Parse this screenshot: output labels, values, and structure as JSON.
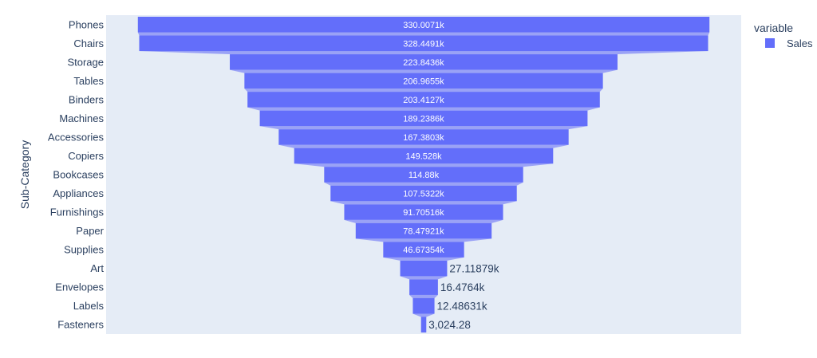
{
  "chart_data": {
    "type": "funnel",
    "title": "",
    "xlabel": "",
    "ylabel": "Sub-Category",
    "categories": [
      "Phones",
      "Chairs",
      "Storage",
      "Tables",
      "Binders",
      "Machines",
      "Accessories",
      "Copiers",
      "Bookcases",
      "Appliances",
      "Furnishings",
      "Paper",
      "Supplies",
      "Art",
      "Envelopes",
      "Labels",
      "Fasteners"
    ],
    "series": [
      {
        "name": "Sales",
        "color": "#636efa",
        "values": [
          330007.1,
          328449.1,
          223843.6,
          206965.5,
          203412.7,
          189238.6,
          167380.3,
          149528,
          114880,
          107532.2,
          91705.16,
          78479.21,
          46673.54,
          27118.79,
          16476.4,
          12486.31,
          3024.28
        ],
        "labels": [
          "330.0071k",
          "328.4491k",
          "223.8436k",
          "206.9655k",
          "203.4127k",
          "189.2386k",
          "167.3803k",
          "149.528k",
          "114.88k",
          "107.5322k",
          "91.70516k",
          "78.47921k",
          "46.67354k",
          "27.11879k",
          "16.4764k",
          "12.48631k",
          "3,024.28"
        ]
      }
    ],
    "legend": {
      "title": "variable",
      "placement": "top-right"
    },
    "grid": false,
    "colors": {
      "plot_bg": "#e5ecf6",
      "connector": "#9aa2f6",
      "inside_text": "#ffffff",
      "outside_text": "#2a3f5f"
    }
  }
}
